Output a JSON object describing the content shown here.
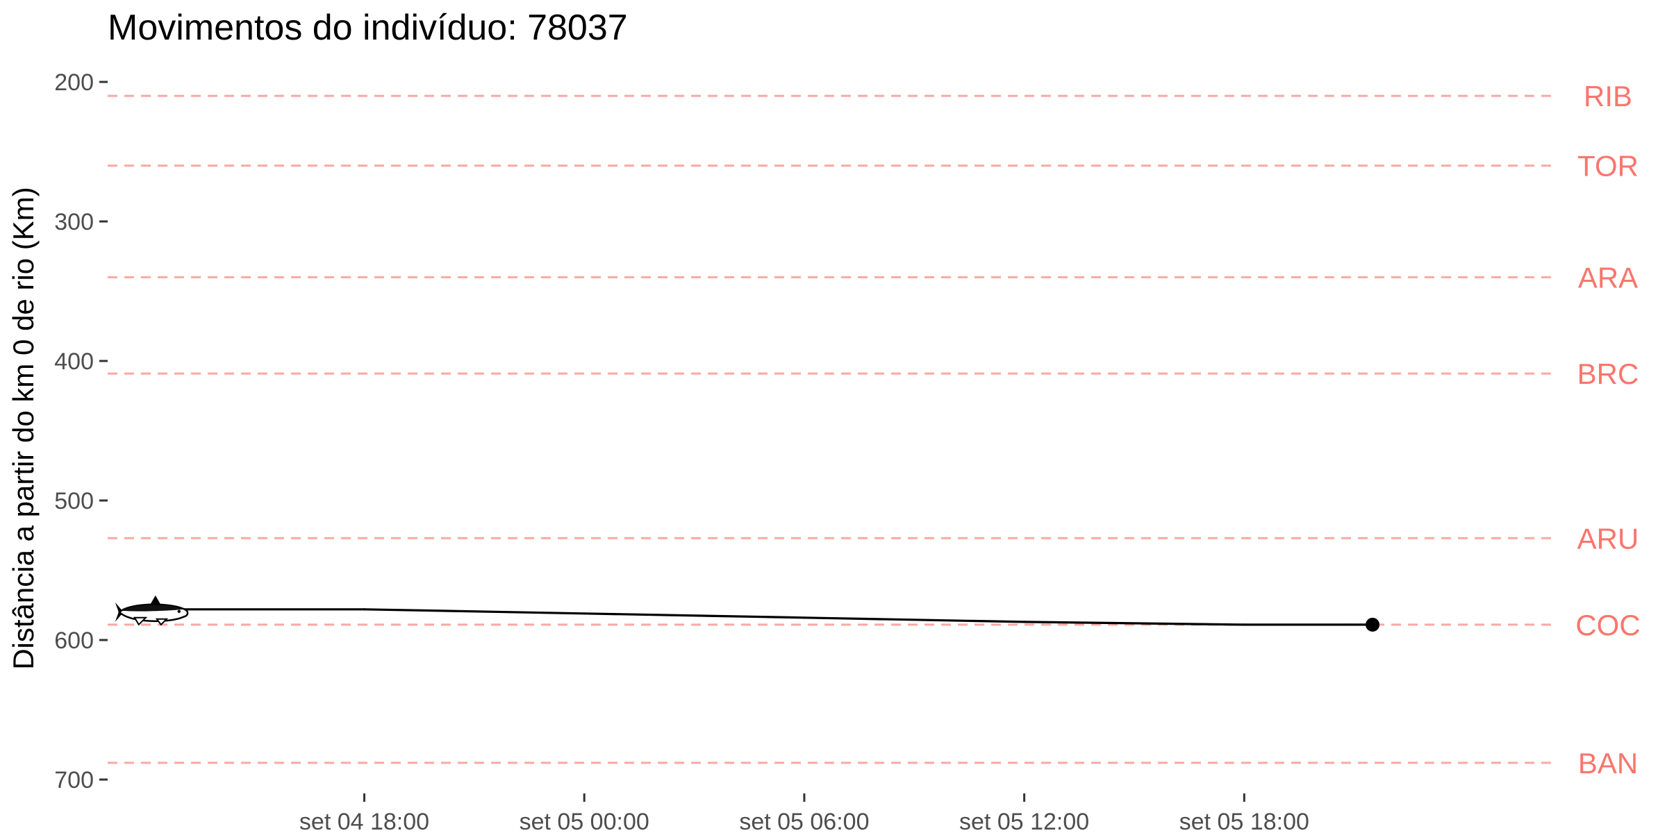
{
  "chart_data": {
    "type": "line",
    "title": "Movimentos do indivíduo: 78037",
    "xlabel": "",
    "ylabel": "Distância a partir do km 0 de rio (Km)",
    "y_reversed": true,
    "ylim": [
      700,
      200
    ],
    "y_ticks": [
      200,
      300,
      400,
      500,
      600,
      700
    ],
    "y_tick_labels": [
      "200",
      "300",
      "400",
      "500",
      "600",
      "700"
    ],
    "xlim": [
      "2024-09-04T11:00",
      "2024-09-06T02:30"
    ],
    "x_ticks": [
      "2024-09-04T18:00",
      "2024-09-05T00:00",
      "2024-09-05T06:00",
      "2024-09-05T12:00",
      "2024-09-05T18:00"
    ],
    "x_tick_labels": [
      "set 04 18:00",
      "set 05 00:00",
      "set 05 06:00",
      "set 05 12:00",
      "set 05 18:00"
    ],
    "grid": false,
    "series": [
      {
        "points": [
          {
            "x": "2024-09-04T12:00",
            "y": 578
          },
          {
            "x": "2024-09-04T18:00",
            "y": 578
          },
          {
            "x": "2024-09-05T00:00",
            "y": 581
          },
          {
            "x": "2024-09-05T06:00",
            "y": 584
          },
          {
            "x": "2024-09-05T12:00",
            "y": 587
          },
          {
            "x": "2024-09-05T18:00",
            "y": 589
          },
          {
            "x": "2024-09-05T21:30",
            "y": 589
          }
        ]
      }
    ],
    "end_marker": {
      "x": "2024-09-05T21:30",
      "y": 589
    },
    "start_icon": "fish-icon",
    "reference_lines": [
      {
        "label": "RIB",
        "y": 210
      },
      {
        "label": "TOR",
        "y": 260
      },
      {
        "label": "ARA",
        "y": 340
      },
      {
        "label": "BRC",
        "y": 409
      },
      {
        "label": "ARU",
        "y": 527
      },
      {
        "label": "COC",
        "y": 589
      },
      {
        "label": "BAN",
        "y": 688
      }
    ],
    "colors": {
      "reference_line": "#F8A9A4",
      "reference_label": "#F8766D",
      "series": "#000000",
      "tick_label": "#4D4D4D"
    }
  }
}
